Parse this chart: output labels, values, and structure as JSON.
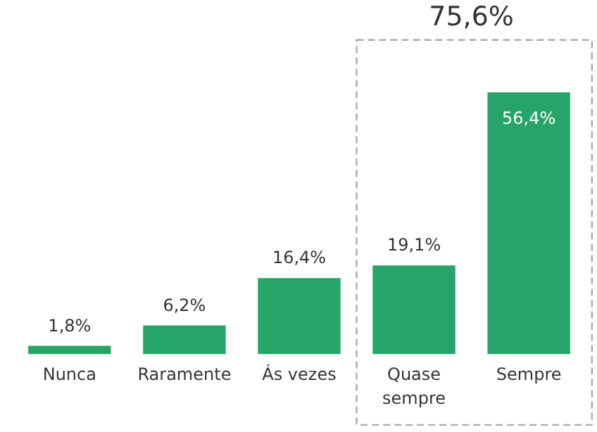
{
  "chart_data": {
    "type": "bar",
    "categories": [
      "Nunca",
      "Raramente",
      "Ás vezes",
      "Quase\nsempre",
      "Sempre"
    ],
    "values": [
      1.8,
      6.2,
      16.4,
      19.1,
      56.4
    ],
    "value_labels": [
      "1,8%",
      "6,2%",
      "16,4%",
      "19,1%",
      "56,4%"
    ],
    "color": "#27a468",
    "annotations": [
      "75,6%"
    ]
  }
}
